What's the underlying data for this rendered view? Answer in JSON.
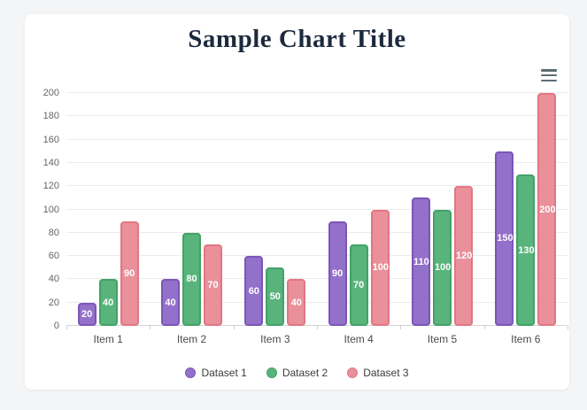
{
  "page": {
    "background_color": "#f4f5f6",
    "card_color": "#ffffff"
  },
  "header": {
    "title": "Sample Chart Title",
    "title_color": "#1c2a3e"
  },
  "toolbar": {
    "menu_icon": "hamburger-menu-icon"
  },
  "chart_data": {
    "type": "bar",
    "title": "Sample Chart Title",
    "categories": [
      "Item 1",
      "Item 2",
      "Item 3",
      "Item 4",
      "Item 5",
      "Item 6"
    ],
    "series": [
      {
        "name": "Dataset 1",
        "values": [
          20,
          40,
          60,
          90,
          110,
          150
        ],
        "fill": "#9370c9",
        "border": "#7b56b8"
      },
      {
        "name": "Dataset 2",
        "values": [
          40,
          80,
          50,
          70,
          100,
          130
        ],
        "fill": "#58b47b",
        "border": "#42a268"
      },
      {
        "name": "Dataset 3",
        "values": [
          90,
          70,
          40,
          100,
          120,
          200
        ],
        "fill": "#e9909b",
        "border": "#e27683"
      }
    ],
    "ylim": [
      0,
      200
    ],
    "yticks": [
      0,
      20,
      40,
      60,
      80,
      100,
      120,
      140,
      160,
      180,
      200
    ],
    "grid": true,
    "gridline_color": "#ececec",
    "axis_line_color": "#d4d4d4",
    "data_labels": "values shown centered inside bars in white bold text",
    "legend_position": "bottom",
    "xlabel": "",
    "ylabel": ""
  }
}
